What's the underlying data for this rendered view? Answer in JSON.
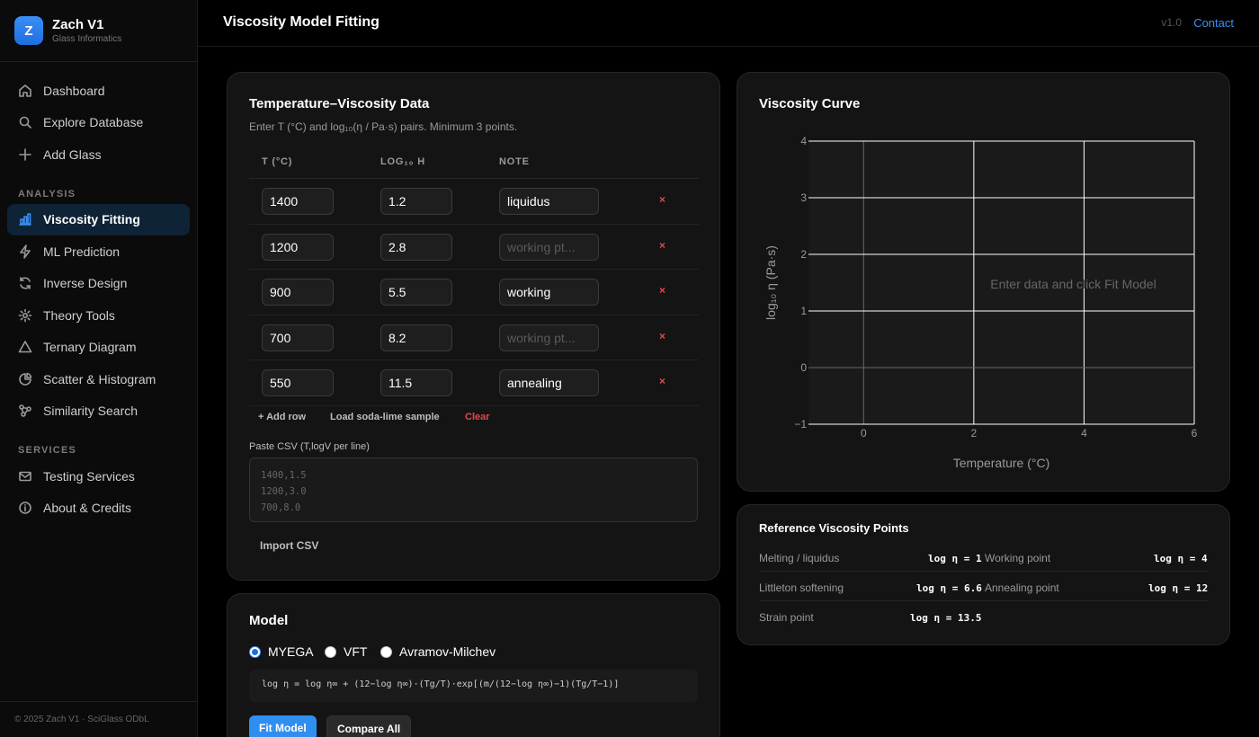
{
  "brand": {
    "logo_letter": "Z",
    "name": "Zach V1",
    "subtitle": "Glass Informatics"
  },
  "nav": {
    "main": [
      {
        "label": "Dashboard",
        "icon": "home-icon"
      },
      {
        "label": "Explore Database",
        "icon": "search-icon"
      },
      {
        "label": "Add Glass",
        "icon": "plus-icon"
      }
    ],
    "analysis_heading": "ANALYSIS",
    "analysis": [
      {
        "label": "Viscosity Fitting",
        "icon": "bar-chart-icon",
        "active": true
      },
      {
        "label": "ML Prediction",
        "icon": "lightning-icon"
      },
      {
        "label": "Inverse Design",
        "icon": "refresh-icon"
      },
      {
        "label": "Theory Tools",
        "icon": "gear-icon"
      },
      {
        "label": "Ternary Diagram",
        "icon": "triangle-icon"
      },
      {
        "label": "Scatter & Histogram",
        "icon": "pie-chart-icon"
      },
      {
        "label": "Similarity Search",
        "icon": "network-icon"
      }
    ],
    "services_heading": "SERVICES",
    "services": [
      {
        "label": "Testing Services",
        "icon": "mail-icon"
      },
      {
        "label": "About & Credits",
        "icon": "info-icon"
      }
    ]
  },
  "footer": "© 2025 Zach V1 · SciGlass ODbL",
  "header": {
    "title": "Viscosity Model Fitting",
    "version": "v1.0",
    "contact": "Contact"
  },
  "data_card": {
    "title": "Temperature–Viscosity Data",
    "description": "Enter T (°C) and log₁₀(η / Pa·s) pairs. Minimum 3 points.",
    "columns": [
      "T (°C)",
      "LOG₁₀ Η",
      "NOTE"
    ],
    "note_placeholder": "working pt...",
    "delete_symbol": "×",
    "rows": [
      {
        "t": "1400",
        "log": "1.2",
        "note": "liquidus"
      },
      {
        "t": "1200",
        "log": "2.8",
        "note": ""
      },
      {
        "t": "900",
        "log": "5.5",
        "note": "working"
      },
      {
        "t": "700",
        "log": "8.2",
        "note": ""
      },
      {
        "t": "550",
        "log": "11.5",
        "note": "annealing"
      }
    ],
    "add_row": "+ Add row",
    "load_sample": "Load soda-lime sample",
    "clear": "Clear",
    "csv_label": "Paste CSV (T,logV per line)",
    "csv_placeholder": [
      "1400,1.5",
      "1200,3.0",
      "700,8.0"
    ],
    "import_label": "Import CSV"
  },
  "model_card": {
    "title": "Model",
    "options": [
      {
        "label": "MYEGA",
        "selected": true
      },
      {
        "label": "VFT",
        "selected": false
      },
      {
        "label": "Avramov-Milchev",
        "selected": false
      }
    ],
    "formula": "log η = log η∞ + (12−log η∞)·(Tg/T)·exp[(m/(12−log η∞)−1)(Tg/T−1)]",
    "fit_label": "Fit Model",
    "compare_label": "Compare All"
  },
  "curve_card": {
    "title": "Viscosity Curve"
  },
  "chart_data": {
    "type": "scatter",
    "title": "",
    "xlabel": "Temperature (°C)",
    "ylabel": "log₁₀ η (Pa·s)",
    "xlim": [
      -1,
      6
    ],
    "ylim": [
      -1,
      4
    ],
    "x_ticks": [
      0,
      2,
      4,
      6
    ],
    "y_ticks": [
      -1,
      0,
      1,
      2,
      3,
      4
    ],
    "grid": true,
    "series": [],
    "annotation": "Enter data and click Fit Model"
  },
  "ref_card": {
    "title": "Reference Viscosity Points",
    "points": [
      {
        "label": "Melting / liquidus",
        "value": "log η = 1"
      },
      {
        "label": "Working point",
        "value": "log η = 4"
      },
      {
        "label": "Littleton softening",
        "value": "log η = 6.6"
      },
      {
        "label": "Annealing point",
        "value": "log η = 12"
      },
      {
        "label": "Strain point",
        "value": "log η = 13.5"
      }
    ]
  },
  "colors": {
    "accent": "#3b8ff5",
    "danger": "#e34a4a",
    "background": "#000000",
    "card": "#141414",
    "plot_bg": "#1a1a1a"
  }
}
